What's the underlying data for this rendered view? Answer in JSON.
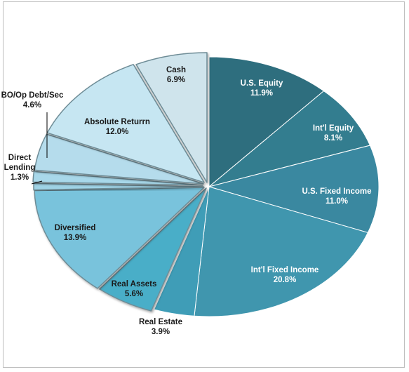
{
  "chart_data": {
    "type": "pie",
    "title": "",
    "start_angle_deg": 0,
    "direction": "clockwise",
    "slices": [
      {
        "label": "U.S. Equity",
        "value": 11.9,
        "value_label": "11.9%",
        "color": "#2e6e7e",
        "text_color": "#ffffff"
      },
      {
        "label": "Int'l Equity",
        "value": 8.1,
        "value_label": "8.1%",
        "color": "#337d8f",
        "text_color": "#ffffff"
      },
      {
        "label": "U.S. Fixed Income",
        "value": 11.0,
        "value_label": "11.0%",
        "color": "#3a88a0",
        "text_color": "#ffffff"
      },
      {
        "label": "Int'l Fixed Income",
        "value": 20.8,
        "value_label": "20.8%",
        "color": "#4096ae",
        "text_color": "#ffffff"
      },
      {
        "label": "Real Estate",
        "value": 3.9,
        "value_label": "3.9%",
        "color": "#3f9db7",
        "text_color": "#1a1a1a",
        "outside": true
      },
      {
        "label": "Real Assets",
        "value": 5.6,
        "value_label": "5.6%",
        "color": "#4aaec8",
        "text_color": "#1a1a1a"
      },
      {
        "label": "Diversified",
        "value": 13.9,
        "value_label": "13.9%",
        "color": "#79c3dc",
        "text_color": "#1a1a1a"
      },
      {
        "label": "",
        "value": 0.8,
        "value_label": "",
        "color": "#9fd3e6",
        "text_color": "#1a1a1a"
      },
      {
        "label": "Direct Lending",
        "value": 1.3,
        "value_label": "1.3%",
        "color": "#a8d8ea",
        "text_color": "#1a1a1a",
        "outside": true
      },
      {
        "label": "BO/Op Debt/Sec",
        "value": 4.6,
        "value_label": "4.6%",
        "color": "#b5dcec",
        "text_color": "#1a1a1a",
        "outside": true
      },
      {
        "label": "Absolute Returrn",
        "value": 12.0,
        "value_label": "12.0%",
        "color": "#c6e6f2",
        "text_color": "#1a1a1a"
      },
      {
        "label": "Cash",
        "value": 6.9,
        "value_label": "6.9%",
        "color": "#cfe4ec",
        "text_color": "#1a1a1a"
      }
    ]
  }
}
